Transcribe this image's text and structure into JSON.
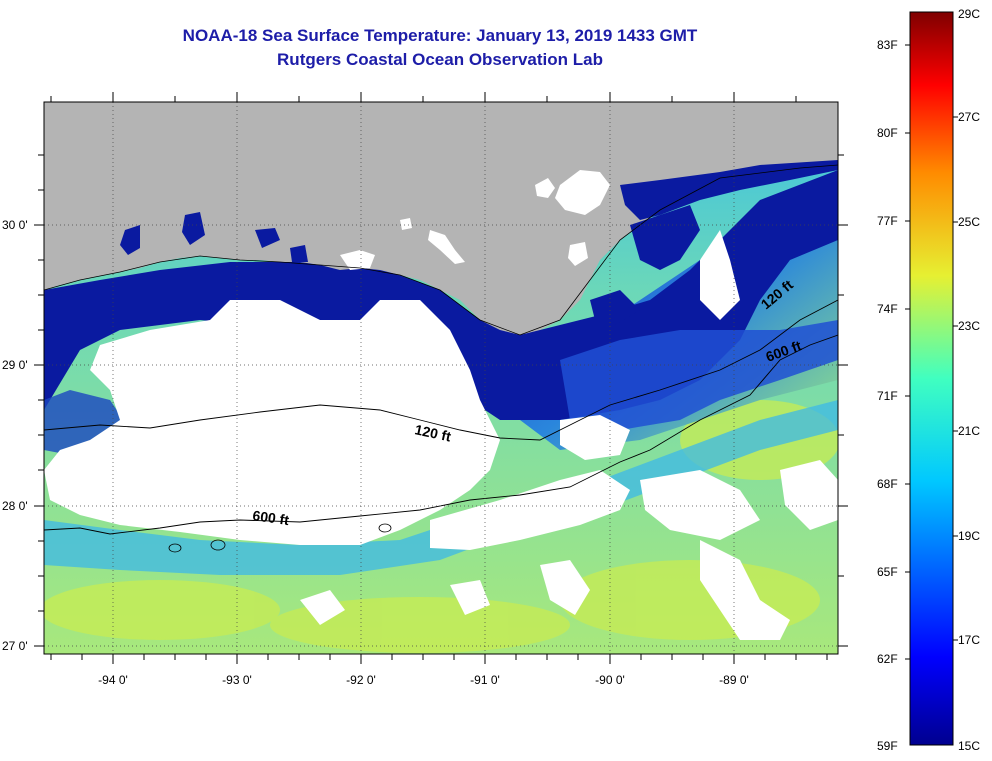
{
  "header": {
    "title": "NOAA-18 Sea Surface Temperature:  January 13, 2019 1433 GMT",
    "subtitle": "Rutgers Coastal Ocean Observation Lab"
  },
  "map": {
    "lat_labels": [
      "30 0'",
      "29 0'",
      "28 0'",
      "27 0'"
    ],
    "lon_labels": [
      "-94 0'",
      "-93 0'",
      "-92 0'",
      "-91 0'",
      "-90 0'",
      "-89 0'"
    ],
    "contours": [
      "120 ft",
      "600 ft",
      "120 ft",
      "600 ft"
    ]
  },
  "colorbar": {
    "fahrenheit_labels": [
      "83F",
      "80F",
      "77F",
      "74F",
      "71F",
      "68F",
      "65F",
      "62F",
      "59F"
    ],
    "celsius_labels": [
      "29C",
      "27C",
      "25C",
      "23C",
      "21C",
      "19C",
      "17C",
      "15C"
    ],
    "colors": {
      "land": "#b4b4b4",
      "cloud": "#ffffff",
      "cold_nearshore": "#0a1aa0",
      "mid_blue": "#1e5ad2",
      "cyan": "#3cc8e6",
      "green_warm": "#8ee07a",
      "yellow_warm": "#c8ee50"
    }
  }
}
